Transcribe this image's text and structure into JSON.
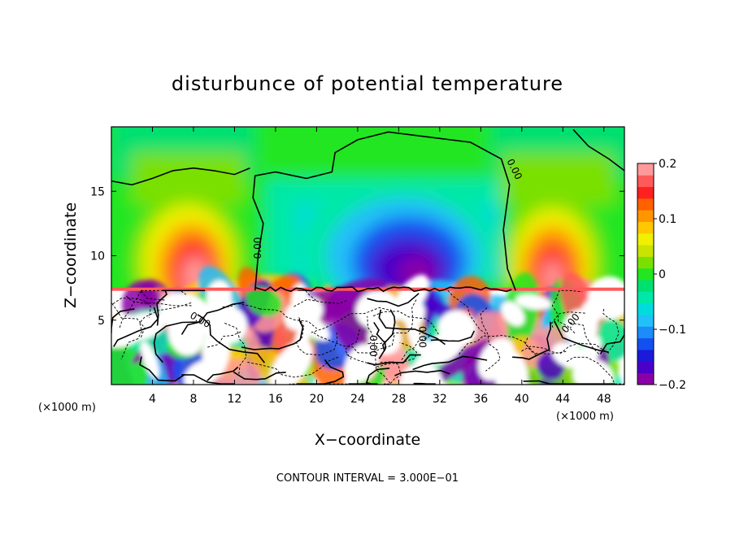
{
  "chart_data": {
    "type": "heatmap",
    "title": "disturbunce of potential temperature",
    "xlabel": "X−coordinate",
    "ylabel": "Z−coordinate",
    "x_unit_left": "(×1000 m)",
    "x_unit_right": "(×1000 m)",
    "footer": "CONTOUR INTERVAL = 3.000E−01",
    "xlim": [
      0,
      50
    ],
    "ylim": [
      0,
      20
    ],
    "x_ticks": [
      4,
      8,
      12,
      16,
      20,
      24,
      28,
      32,
      36,
      40,
      44,
      48
    ],
    "y_ticks": [
      5,
      10,
      15
    ],
    "colorbar": {
      "range": [
        -0.2,
        0.2
      ],
      "tick_labels": [
        {
          "value": 0.2,
          "label": "0.2"
        },
        {
          "value": 0.1,
          "label": "0.1"
        },
        {
          "value": 0.0,
          "label": "0"
        },
        {
          "value": -0.1,
          "label": "−0.1"
        },
        {
          "value": -0.2,
          "label": "−0.2"
        }
      ],
      "colors": [
        "#8a00a8",
        "#4a00c8",
        "#1a1ad8",
        "#1450f0",
        "#1c8cf8",
        "#22c0f8",
        "#00dcdc",
        "#00e8a8",
        "#00e070",
        "#22e622",
        "#7ae000",
        "#c8e400",
        "#f0f000",
        "#ffc800",
        "#ff9600",
        "#ff6000",
        "#ff2020",
        "#ff5a5a",
        "#ff9a9a"
      ]
    },
    "contour_labels": [
      {
        "text": "0.00",
        "x": 39.0,
        "y": 16.6,
        "angle": 63
      },
      {
        "text": "0.00",
        "x": 14.6,
        "y": 10.6,
        "angle": -90
      },
      {
        "text": "0.00",
        "x": 8.5,
        "y": 4.8,
        "angle": 30
      },
      {
        "text": "0.00",
        "x": 25.2,
        "y": 3.0,
        "angle": 90
      },
      {
        "text": "0.00",
        "x": 30.0,
        "y": 3.7,
        "angle": 90
      },
      {
        "text": "0.00",
        "x": 45.0,
        "y": 4.6,
        "angle": -50
      }
    ],
    "fields": {
      "upper_anomalies": [
        {
          "name": "warm-left",
          "x": 7.5,
          "z": 10.5,
          "peak": 0.2
        },
        {
          "name": "cold-center",
          "x": 29.5,
          "z": 9.5,
          "peak": -0.2
        },
        {
          "name": "warm-right",
          "x": 43.0,
          "z": 10.0,
          "peak": 0.18
        }
      ],
      "interface_height": 7.4
    }
  }
}
